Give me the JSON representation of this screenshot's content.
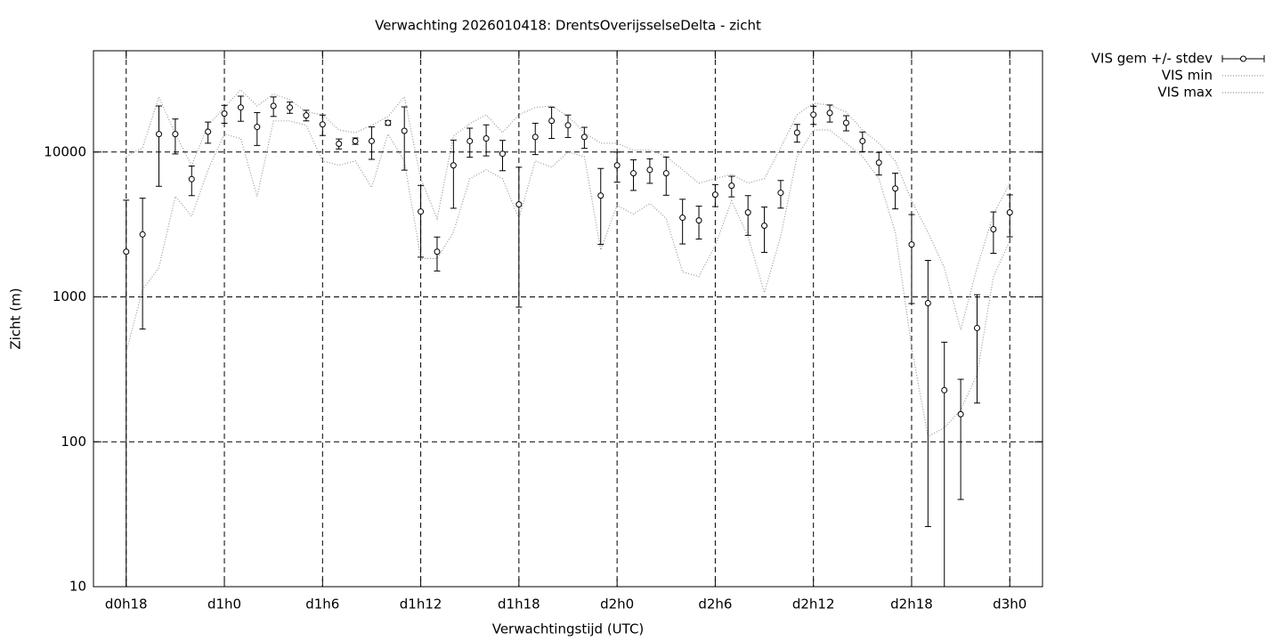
{
  "chart_data": {
    "type": "errorbar",
    "title": "Verwachting 2026010418: DrentsOverijsselseDelta - zicht",
    "x_label": "Verwachtingstijd (UTC)",
    "y_label": "Zicht (m)",
    "x": [
      18,
      19,
      20,
      21,
      22,
      23,
      24,
      25,
      26,
      27,
      28,
      29,
      30,
      31,
      32,
      33,
      34,
      35,
      36,
      37,
      38,
      39,
      40,
      41,
      42,
      43,
      44,
      45,
      46,
      47,
      48,
      49,
      50,
      51,
      52,
      53,
      54,
      55,
      56,
      57,
      58,
      59,
      60,
      61,
      62,
      63,
      64,
      65,
      66,
      67,
      68,
      69,
      70,
      71,
      72
    ],
    "xlim": [
      16,
      74
    ],
    "xticks": [
      {
        "value": 18,
        "label": "d0h18"
      },
      {
        "value": 24,
        "label": "d1h0"
      },
      {
        "value": 30,
        "label": "d1h6"
      },
      {
        "value": 36,
        "label": "d1h12"
      },
      {
        "value": 42,
        "label": "d1h18"
      },
      {
        "value": 48,
        "label": "d2h0"
      },
      {
        "value": 54,
        "label": "d2h6"
      },
      {
        "value": 60,
        "label": "d2h12"
      },
      {
        "value": 66,
        "label": "d2h18"
      },
      {
        "value": 72,
        "label": "d3h0"
      }
    ],
    "ylim": [
      10,
      50000
    ],
    "yticks": [
      10,
      100,
      1000,
      10000
    ],
    "y_scale": "log",
    "grid": true,
    "legend": "outside-top-right",
    "series": [
      {
        "name": "VIS gem +/- stdev",
        "color": "#000000",
        "style": "errorbar",
        "values": [
          2050,
          2700,
          13300,
          13300,
          6500,
          13800,
          18400,
          20300,
          14900,
          20800,
          20300,
          17900,
          15500,
          11400,
          11900,
          11900,
          15900,
          14000,
          3880,
          2050,
          8090,
          11900,
          12400,
          9730,
          4350,
          12700,
          16400,
          15300,
          12700,
          5000,
          8090,
          7130,
          7530,
          7130,
          3520,
          3370,
          5080,
          5850,
          3830,
          3100,
          5230,
          13600,
          18100,
          18600,
          15900,
          11900,
          8440,
          5600,
          2300,
          906,
          227,
          155,
          610,
          2930,
          3830
        ],
        "errors": [
          2600,
          2100,
          7500,
          3600,
          1500,
          2300,
          2600,
          4000,
          3800,
          3200,
          1800,
          1500,
          2500,
          900,
          600,
          3000,
          600,
          6500,
          2000,
          540,
          4000,
          2700,
          3000,
          2300,
          3500,
          3100,
          4000,
          2700,
          2100,
          2700,
          1900,
          1700,
          1450,
          2100,
          1200,
          860,
          880,
          950,
          1170,
          1070,
          1130,
          1900,
          2600,
          2500,
          1900,
          1850,
          1500,
          1550,
          1400,
          880,
          260,
          115,
          425,
          930,
          1230
        ]
      },
      {
        "name": "VIS min",
        "color": "#999999",
        "style": "dotted",
        "values": [
          417,
          1120,
          1590,
          4940,
          3610,
          7540,
          13300,
          12400,
          4940,
          16400,
          16400,
          15300,
          8690,
          8090,
          8690,
          5690,
          13300,
          8690,
          1840,
          1840,
          2800,
          6550,
          7540,
          6550,
          3470,
          8690,
          7870,
          10000,
          9310,
          2110,
          4280,
          3720,
          4410,
          3470,
          1490,
          1380,
          2270,
          4600,
          2610,
          1070,
          2610,
          9310,
          14200,
          14200,
          11500,
          9310,
          6550,
          2800,
          447,
          109,
          125,
          166,
          292,
          1380,
          2440
        ]
      },
      {
        "name": "VIS max",
        "color": "#999999",
        "style": "dotted",
        "values": [
          9310,
          10700,
          24000,
          13300,
          8090,
          15300,
          20300,
          26900,
          20800,
          25100,
          23000,
          18900,
          18100,
          14200,
          13600,
          15300,
          17600,
          24000,
          6550,
          3470,
          12900,
          15700,
          18100,
          13600,
          18100,
          20300,
          20800,
          17600,
          13600,
          11500,
          11500,
          10300,
          10300,
          9310,
          7540,
          6100,
          6550,
          7030,
          6100,
          6550,
          10700,
          18100,
          21700,
          21100,
          18900,
          14200,
          11500,
          8690,
          4600,
          2800,
          1590,
          593,
          1590,
          3720,
          6100
        ]
      }
    ]
  }
}
